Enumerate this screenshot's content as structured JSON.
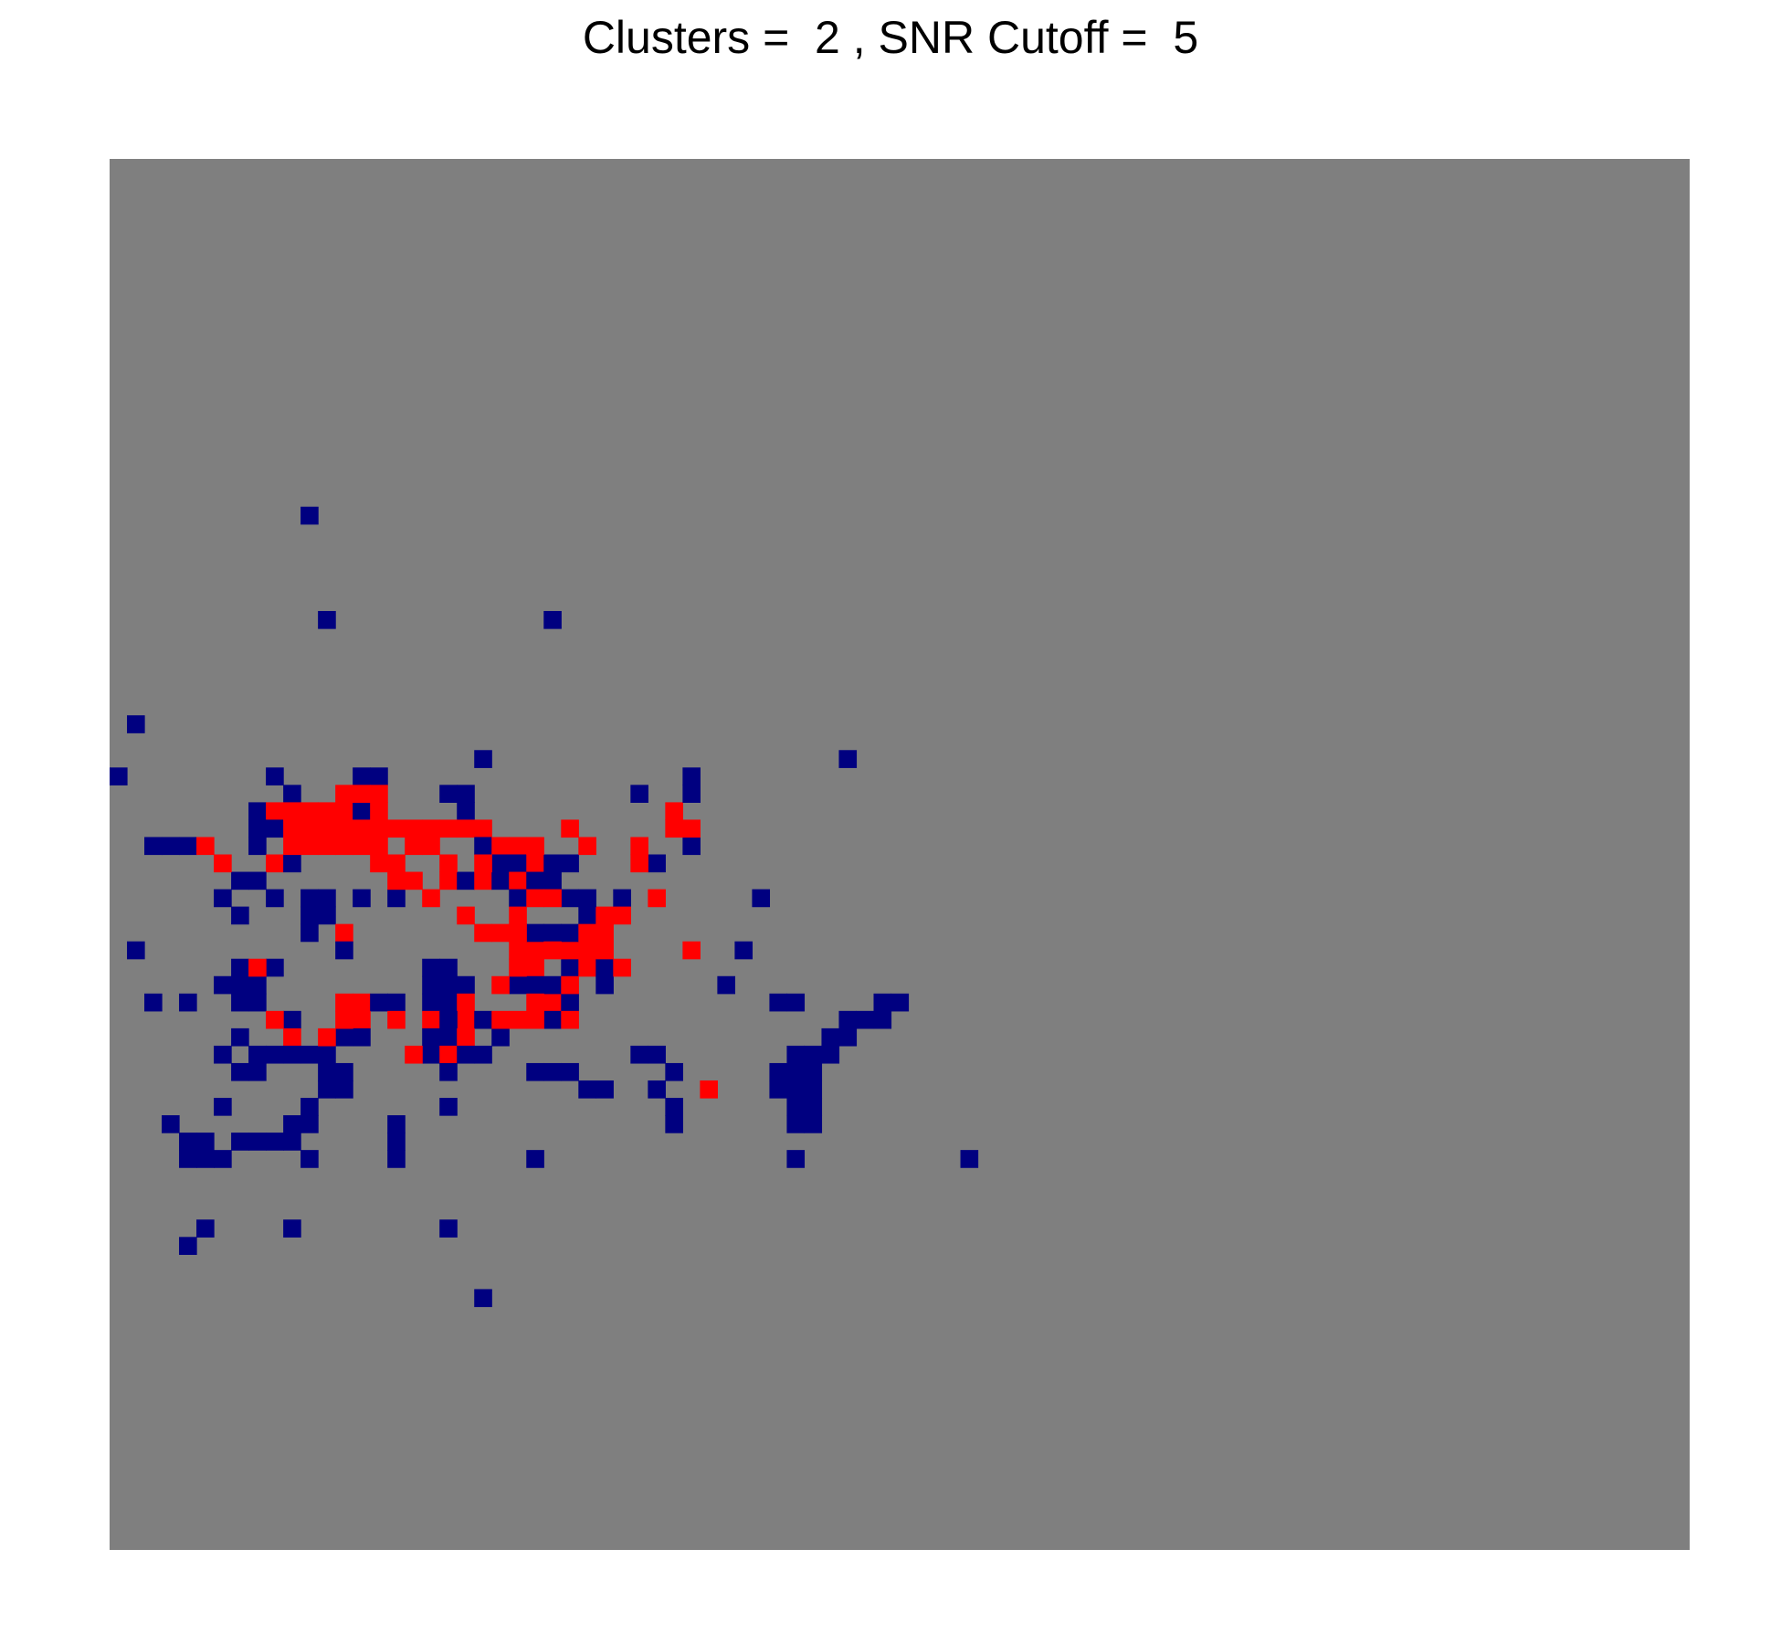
{
  "chart_data": {
    "type": "heatmap",
    "title": "Clusters =  2 , SNR Cutoff =  5",
    "grid_columns": 91,
    "grid_rows": 80,
    "background_color": "#7f7f7f",
    "cluster_colors": {
      "1": "#000080",
      "2": "#ff0000"
    },
    "axes_shown": false,
    "legend": "none",
    "cells": {
      "1": [
        [
          11,
          20
        ],
        [
          12,
          26
        ],
        [
          25,
          26
        ],
        [
          1,
          32
        ],
        [
          0,
          35
        ],
        [
          9,
          35
        ],
        [
          21,
          34
        ],
        [
          10,
          36
        ],
        [
          14,
          35
        ],
        [
          15,
          35
        ],
        [
          33,
          35
        ],
        [
          42,
          34
        ],
        [
          8,
          37
        ],
        [
          9,
          37
        ],
        [
          8,
          38
        ],
        [
          9,
          38
        ],
        [
          8,
          39
        ],
        [
          10,
          38
        ],
        [
          11,
          39
        ],
        [
          13,
          37
        ],
        [
          14,
          37
        ],
        [
          15,
          37
        ],
        [
          19,
          36
        ],
        [
          20,
          36
        ],
        [
          20,
          37
        ],
        [
          20,
          38
        ],
        [
          21,
          38
        ],
        [
          21,
          39
        ],
        [
          22,
          39
        ],
        [
          23,
          39
        ],
        [
          33,
          39
        ],
        [
          22,
          40
        ],
        [
          23,
          40
        ],
        [
          24,
          40
        ],
        [
          26,
          40
        ],
        [
          19,
          41
        ],
        [
          20,
          41
        ],
        [
          21,
          41
        ],
        [
          22,
          41
        ],
        [
          23,
          41
        ],
        [
          24,
          41
        ],
        [
          23,
          42
        ],
        [
          23,
          43
        ],
        [
          9,
          40
        ],
        [
          10,
          40
        ],
        [
          4,
          39
        ],
        [
          2,
          39
        ],
        [
          3,
          39
        ],
        [
          7,
          41
        ],
        [
          8,
          41
        ],
        [
          6,
          42
        ],
        [
          9,
          42
        ],
        [
          7,
          43
        ],
        [
          14,
          42
        ],
        [
          11,
          42
        ],
        [
          12,
          42
        ],
        [
          11,
          43
        ],
        [
          12,
          43
        ],
        [
          16,
          42
        ],
        [
          13,
          44
        ],
        [
          11,
          44
        ],
        [
          1,
          45
        ],
        [
          13,
          45
        ],
        [
          23,
          45
        ],
        [
          24,
          45
        ],
        [
          27,
          45
        ],
        [
          31,
          42
        ],
        [
          32,
          37
        ],
        [
          9,
          46
        ],
        [
          7,
          46
        ],
        [
          7,
          47
        ],
        [
          8,
          47
        ],
        [
          7,
          48
        ],
        [
          8,
          48
        ],
        [
          6,
          47
        ],
        [
          2,
          48
        ],
        [
          4,
          48
        ],
        [
          18,
          46
        ],
        [
          18,
          47
        ],
        [
          18,
          48
        ],
        [
          19,
          46
        ],
        [
          19,
          47
        ],
        [
          19,
          48
        ],
        [
          20,
          47
        ],
        [
          20,
          48
        ],
        [
          20,
          49
        ],
        [
          18,
          49
        ],
        [
          19,
          49
        ],
        [
          21,
          49
        ],
        [
          18,
          50
        ],
        [
          19,
          50
        ],
        [
          20,
          50
        ],
        [
          22,
          50
        ],
        [
          25,
          48
        ],
        [
          26,
          48
        ],
        [
          25,
          49
        ],
        [
          25,
          47
        ],
        [
          26,
          46
        ],
        [
          27,
          46
        ],
        [
          28,
          46
        ],
        [
          28,
          47
        ],
        [
          26,
          45
        ],
        [
          24,
          46
        ],
        [
          24,
          47
        ],
        [
          23,
          47
        ],
        [
          13,
          48
        ],
        [
          14,
          48
        ],
        [
          15,
          48
        ],
        [
          16,
          48
        ],
        [
          14,
          49
        ],
        [
          10,
          49
        ],
        [
          10,
          50
        ],
        [
          7,
          50
        ],
        [
          6,
          51
        ],
        [
          8,
          51
        ],
        [
          9,
          51
        ],
        [
          11,
          51
        ],
        [
          12,
          51
        ],
        [
          7,
          52
        ],
        [
          8,
          52
        ],
        [
          10,
          51
        ],
        [
          13,
          52
        ],
        [
          12,
          52
        ],
        [
          13,
          50
        ],
        [
          14,
          50
        ],
        [
          18,
          51
        ],
        [
          19,
          51
        ],
        [
          20,
          51
        ],
        [
          21,
          51
        ],
        [
          19,
          52
        ],
        [
          24,
          52
        ],
        [
          25,
          52
        ],
        [
          26,
          52
        ],
        [
          27,
          53
        ],
        [
          28,
          53
        ],
        [
          30,
          51
        ],
        [
          31,
          51
        ],
        [
          29,
          46
        ],
        [
          27,
          43
        ],
        [
          28,
          43
        ],
        [
          28,
          44
        ],
        [
          26,
          44
        ],
        [
          27,
          44
        ],
        [
          26,
          42
        ],
        [
          27,
          42
        ],
        [
          25,
          41
        ],
        [
          25,
          40
        ],
        [
          24,
          44
        ],
        [
          25,
          44
        ],
        [
          29,
          42
        ],
        [
          29,
          43
        ],
        [
          31,
          40
        ],
        [
          37,
          42
        ],
        [
          36,
          45
        ],
        [
          35,
          47
        ],
        [
          38,
          48
        ],
        [
          39,
          48
        ],
        [
          44,
          48
        ],
        [
          44,
          49
        ],
        [
          43,
          49
        ],
        [
          45,
          48
        ],
        [
          42,
          49
        ],
        [
          42,
          50
        ],
        [
          41,
          50
        ],
        [
          41,
          51
        ],
        [
          40,
          51
        ],
        [
          39,
          51
        ],
        [
          39,
          52
        ],
        [
          38,
          52
        ],
        [
          38,
          53
        ],
        [
          39,
          53
        ],
        [
          40,
          52
        ],
        [
          40,
          53
        ],
        [
          39,
          54
        ],
        [
          40,
          54
        ],
        [
          39,
          55
        ],
        [
          40,
          55
        ],
        [
          39,
          57
        ],
        [
          33,
          38
        ],
        [
          33,
          36
        ],
        [
          49,
          57
        ],
        [
          6,
          54
        ],
        [
          3,
          55
        ],
        [
          4,
          56
        ],
        [
          5,
          56
        ],
        [
          4,
          57
        ],
        [
          5,
          57
        ],
        [
          6,
          57
        ],
        [
          7,
          56
        ],
        [
          8,
          56
        ],
        [
          9,
          56
        ],
        [
          10,
          56
        ],
        [
          10,
          55
        ],
        [
          11,
          55
        ],
        [
          11,
          54
        ],
        [
          11,
          57
        ],
        [
          12,
          53
        ],
        [
          13,
          53
        ],
        [
          16,
          55
        ],
        [
          16,
          56
        ],
        [
          16,
          57
        ],
        [
          19,
          54
        ],
        [
          5,
          61
        ],
        [
          4,
          62
        ],
        [
          10,
          61
        ],
        [
          19,
          61
        ],
        [
          21,
          65
        ],
        [
          24,
          57
        ],
        [
          30,
          36
        ],
        [
          32,
          55
        ],
        [
          32,
          52
        ],
        [
          32,
          54
        ],
        [
          31,
          53
        ]
      ],
      "2": [
        [
          9,
          37
        ],
        [
          10,
          38
        ],
        [
          11,
          38
        ],
        [
          12,
          38
        ],
        [
          13,
          38
        ],
        [
          14,
          38
        ],
        [
          15,
          38
        ],
        [
          10,
          37
        ],
        [
          11,
          37
        ],
        [
          12,
          37
        ],
        [
          13,
          37
        ],
        [
          14,
          36
        ],
        [
          15,
          36
        ],
        [
          15,
          39
        ],
        [
          16,
          38
        ],
        [
          17,
          38
        ],
        [
          17,
          39
        ],
        [
          18,
          38
        ],
        [
          18,
          39
        ],
        [
          19,
          38
        ],
        [
          20,
          38
        ],
        [
          21,
          38
        ],
        [
          21,
          40
        ],
        [
          19,
          40
        ],
        [
          19,
          41
        ],
        [
          21,
          41
        ],
        [
          10,
          39
        ],
        [
          11,
          39
        ],
        [
          12,
          39
        ],
        [
          13,
          39
        ],
        [
          14,
          39
        ],
        [
          15,
          40
        ],
        [
          16,
          40
        ],
        [
          16,
          41
        ],
        [
          17,
          41
        ],
        [
          18,
          42
        ],
        [
          20,
          43
        ],
        [
          21,
          44
        ],
        [
          22,
          44
        ],
        [
          23,
          45
        ],
        [
          22,
          39
        ],
        [
          23,
          39
        ],
        [
          23,
          41
        ],
        [
          24,
          40
        ],
        [
          24,
          39
        ],
        [
          26,
          38
        ],
        [
          27,
          39
        ],
        [
          25,
          42
        ],
        [
          24,
          42
        ],
        [
          23,
          43
        ],
        [
          23,
          44
        ],
        [
          23,
          46
        ],
        [
          24,
          46
        ],
        [
          22,
          47
        ],
        [
          24,
          48
        ],
        [
          25,
          48
        ],
        [
          26,
          47
        ],
        [
          27,
          46
        ],
        [
          28,
          45
        ],
        [
          33,
          45
        ],
        [
          13,
          48
        ],
        [
          14,
          49
        ],
        [
          14,
          48
        ],
        [
          13,
          49
        ],
        [
          12,
          50
        ],
        [
          16,
          49
        ],
        [
          18,
          49
        ],
        [
          20,
          48
        ],
        [
          20,
          49
        ],
        [
          22,
          49
        ],
        [
          24,
          49
        ],
        [
          26,
          49
        ],
        [
          29,
          46
        ],
        [
          30,
          40
        ],
        [
          32,
          37
        ],
        [
          26,
          45
        ],
        [
          25,
          45
        ],
        [
          27,
          45
        ],
        [
          24,
          45
        ],
        [
          31,
          42
        ],
        [
          30,
          39
        ],
        [
          28,
          43
        ],
        [
          29,
          43
        ],
        [
          27,
          44
        ],
        [
          28,
          44
        ],
        [
          32,
          38
        ],
        [
          33,
          38
        ],
        [
          23,
          49
        ],
        [
          8,
          46
        ],
        [
          9,
          49
        ],
        [
          17,
          51
        ],
        [
          19,
          51
        ],
        [
          20,
          50
        ],
        [
          34,
          53
        ],
        [
          10,
          50
        ],
        [
          13,
          44
        ],
        [
          9,
          40
        ],
        [
          5,
          39
        ],
        [
          6,
          40
        ],
        [
          13,
          36
        ],
        [
          15,
          37
        ]
      ]
    }
  }
}
